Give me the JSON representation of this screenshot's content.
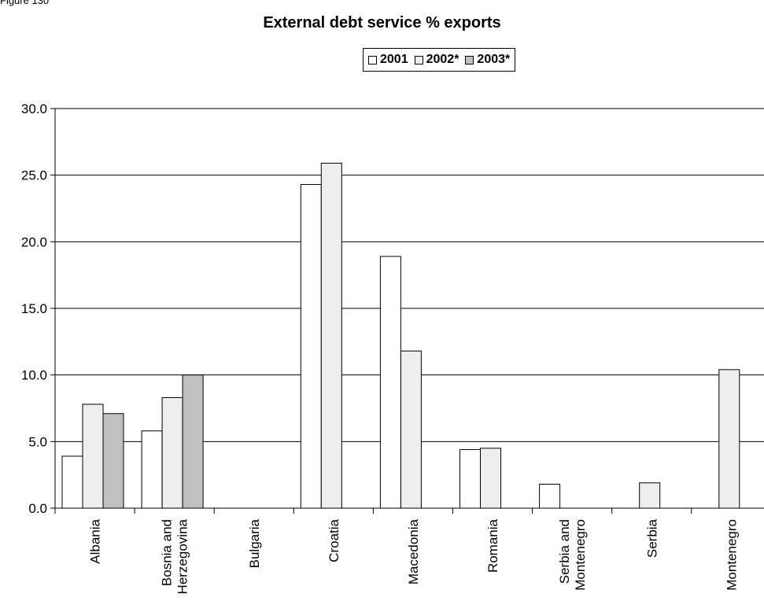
{
  "figure_label": "Figure 130",
  "chart_data": {
    "type": "bar",
    "title": "External debt service % exports",
    "xlabel": "",
    "ylabel": "",
    "ylim": [
      0,
      30
    ],
    "yticks": [
      "0.0",
      "5.0",
      "10.0",
      "15.0",
      "20.0",
      "25.0",
      "30.0"
    ],
    "grid": true,
    "legend_position": "top-center",
    "categories": [
      [
        "Albania"
      ],
      [
        "Bosnia and",
        "Herzegovina"
      ],
      [
        "Bulgaria"
      ],
      [
        "Croatia"
      ],
      [
        "Macedonia"
      ],
      [
        "Romania"
      ],
      [
        "Serbia and",
        "Montenegro"
      ],
      [
        "Serbia"
      ],
      [
        "Montenegro"
      ]
    ],
    "series": [
      {
        "name": "2001",
        "color": "#ffffff",
        "values": [
          3.9,
          5.8,
          null,
          24.3,
          18.9,
          4.4,
          1.8,
          null,
          null
        ]
      },
      {
        "name": "2002*",
        "color": "#eeeeee",
        "values": [
          7.8,
          8.3,
          null,
          25.9,
          11.8,
          4.5,
          null,
          1.9,
          10.4
        ]
      },
      {
        "name": "2003*",
        "color": "#c0c0c0",
        "values": [
          7.1,
          10.0,
          null,
          null,
          null,
          null,
          null,
          null,
          null
        ]
      }
    ]
  }
}
